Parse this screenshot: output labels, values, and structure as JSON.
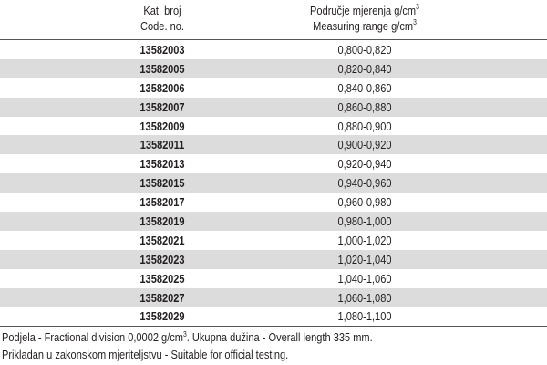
{
  "header": {
    "code_hr": "Kat. broj",
    "code_en": "Code. no.",
    "range_hr": "Područje mjerenja g/cm",
    "range_en": "Measuring range g/cm",
    "sup": "3"
  },
  "rows": [
    {
      "code": "13582003",
      "range": "0,800-0,820"
    },
    {
      "code": "13582005",
      "range": "0,820-0,840"
    },
    {
      "code": "13582006",
      "range": "0,840-0,860"
    },
    {
      "code": "13582007",
      "range": "0,860-0,880"
    },
    {
      "code": "13582009",
      "range": "0,880-0,900"
    },
    {
      "code": "13582011",
      "range": "0,900-0,920"
    },
    {
      "code": "13582013",
      "range": "0,920-0,940"
    },
    {
      "code": "13582015",
      "range": "0,940-0,960"
    },
    {
      "code": "13582017",
      "range": "0,960-0,980"
    },
    {
      "code": "13582019",
      "range": "0,980-1,000"
    },
    {
      "code": "13582021",
      "range": "1,000-1,020"
    },
    {
      "code": "13582023",
      "range": "1,020-1,040"
    },
    {
      "code": "13582025",
      "range": "1,040-1,060"
    },
    {
      "code": "13582027",
      "range": "1,060-1,080"
    },
    {
      "code": "13582029",
      "range": "1,080-1,100"
    }
  ],
  "footer": {
    "line1a": "Podjela - Fractional division 0,0002 g/cm",
    "line1sup": "3",
    "line1b": ". Ukupna dužina - Overall length 335 mm.",
    "line2": "Prikladan u zakonskom mjeriteljstvu - Suitable for official testing."
  },
  "colors": {
    "alt_row": "#dcdcdc",
    "text": "#231f20"
  }
}
